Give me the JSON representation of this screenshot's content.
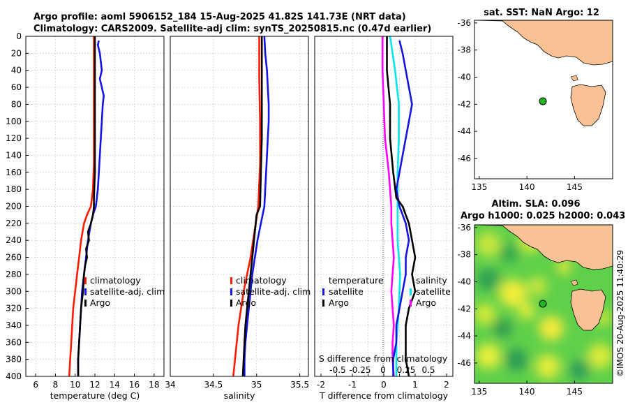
{
  "header": {
    "line1": "Argo profile: aoml 5906152_184 15-Aug-2025 41.82S 141.73E (NRT data)",
    "line2": "Climatology: CARS2009. Satellite-adj clim: synTS_20250815.nc (0.47d earlier)"
  },
  "side_label": "©IMOS 20-Aug-2025 11:40:29",
  "colors": {
    "climatology": "#ff1a00",
    "satellite": "#1414e6",
    "argo": "#000000",
    "t_diff_sat": "#1414e6",
    "s_diff_sat": "#00e5ee",
    "s_diff_argo": "#ff00ff",
    "land": "#f9c295",
    "ocean_sla": "#5fd04a"
  },
  "chart_data": [
    {
      "type": "line",
      "panel": "temperature",
      "xlabel": "temperature (deg C)",
      "ylabel": "",
      "xlim": [
        5,
        19
      ],
      "ylim": [
        400,
        0
      ],
      "xticks": [
        6,
        8,
        10,
        12,
        14,
        16,
        18
      ],
      "yticks": [
        0,
        20,
        40,
        60,
        80,
        100,
        120,
        140,
        160,
        180,
        200,
        220,
        240,
        260,
        280,
        300,
        320,
        340,
        360,
        380,
        400
      ],
      "legend": [
        "climatology",
        "satellite-adj. clim",
        "Argo"
      ],
      "series": [
        {
          "name": "climatology",
          "depth": [
            0,
            50,
            100,
            150,
            180,
            200,
            210,
            220,
            240,
            260,
            280,
            300,
            320,
            340,
            360,
            380,
            400
          ],
          "values": [
            11.9,
            11.9,
            11.9,
            11.9,
            11.8,
            11.6,
            11.2,
            10.9,
            10.6,
            10.4,
            10.2,
            10.0,
            9.8,
            9.7,
            9.6,
            9.5,
            9.4
          ]
        },
        {
          "name": "satellite-adj. clim",
          "depth": [
            5,
            10,
            20,
            40,
            50,
            60,
            70,
            80,
            100,
            120,
            140,
            160,
            180,
            200,
            210,
            220,
            240,
            260,
            280,
            300,
            320,
            340,
            360,
            380,
            400
          ],
          "values": [
            12.4,
            12.3,
            12.5,
            12.7,
            12.5,
            12.7,
            12.9,
            12.8,
            12.7,
            12.6,
            12.5,
            12.4,
            12.3,
            12.1,
            11.8,
            11.6,
            11.3,
            11.1,
            10.9,
            10.7,
            10.6,
            10.5,
            10.4,
            10.3,
            10.3
          ]
        },
        {
          "name": "Argo",
          "depth": [
            0,
            40,
            80,
            120,
            160,
            190,
            200,
            210,
            220,
            230,
            240,
            250,
            260,
            270,
            280,
            300,
            320,
            340,
            360,
            380,
            400
          ],
          "values": [
            12.0,
            12.0,
            12.0,
            12.0,
            12.0,
            11.9,
            11.9,
            11.8,
            11.6,
            11.3,
            11.4,
            11.1,
            11.2,
            11.0,
            10.9,
            10.8,
            10.6,
            10.5,
            10.4,
            10.3,
            10.3
          ]
        }
      ]
    },
    {
      "type": "line",
      "panel": "salinity",
      "xlabel": "salinity",
      "xlim": [
        34,
        35.6
      ],
      "ylim": [
        400,
        0
      ],
      "xticks": [
        34,
        34.5,
        35,
        35.5
      ],
      "legend": [
        "climatology",
        "satellite-adj. clim",
        "Argo"
      ],
      "series": [
        {
          "name": "climatology",
          "depth": [
            0,
            50,
            100,
            150,
            200,
            220,
            240,
            260,
            280,
            300,
            320,
            340,
            360,
            380,
            400
          ],
          "values": [
            35.03,
            35.03,
            35.04,
            35.04,
            35.02,
            34.99,
            34.96,
            34.93,
            34.89,
            34.85,
            34.82,
            34.79,
            34.77,
            34.75,
            34.73
          ]
        },
        {
          "name": "satellite-adj. clim",
          "depth": [
            0,
            20,
            40,
            60,
            80,
            100,
            120,
            140,
            160,
            180,
            200,
            220,
            240,
            260,
            280,
            300,
            320,
            340,
            360,
            380,
            400
          ],
          "values": [
            35.09,
            35.1,
            35.12,
            35.13,
            35.14,
            35.14,
            35.13,
            35.12,
            35.11,
            35.1,
            35.09,
            35.05,
            35.01,
            34.98,
            34.95,
            34.93,
            34.91,
            34.89,
            34.87,
            34.86,
            34.86
          ]
        },
        {
          "name": "Argo",
          "depth": [
            0,
            40,
            80,
            120,
            160,
            200,
            210,
            220,
            240,
            260,
            280,
            300,
            320,
            340,
            360,
            380,
            400
          ],
          "values": [
            35.06,
            35.06,
            35.06,
            35.06,
            35.05,
            35.04,
            35.0,
            34.99,
            34.97,
            34.95,
            34.93,
            34.91,
            34.89,
            34.87,
            34.86,
            34.85,
            34.84
          ]
        }
      ]
    },
    {
      "type": "line",
      "panel": "difference",
      "xlabel": "T difference from climatology",
      "xlim": [
        -2.2,
        2.2
      ],
      "ylim": [
        400,
        0
      ],
      "xticks": [
        -2,
        -1.5,
        -1,
        -0.5,
        0,
        0.5,
        1,
        1.5,
        2
      ],
      "xtick_labels": [
        "-2",
        "-1.5",
        "-1",
        "-0.5",
        "0",
        "0.5",
        "1",
        "1.5",
        "2"
      ],
      "second_xlabel": "S difference from climatology",
      "second_xticks": [
        "-0.5",
        "-0.25",
        "0",
        "0.25",
        "0.5"
      ],
      "legend_left_title": "temperature",
      "legend_left": [
        "satellite",
        "Argo"
      ],
      "legend_right_title": "salinity",
      "legend_right": [
        "satellite",
        "Argo"
      ],
      "series": [
        {
          "name": "T satellite",
          "depth": [
            5,
            20,
            40,
            60,
            80,
            100,
            120,
            140,
            160,
            180,
            200,
            220,
            240,
            260,
            280,
            300,
            320,
            340,
            360,
            380,
            400
          ],
          "values": [
            0.5,
            0.6,
            0.7,
            0.8,
            0.9,
            0.8,
            0.7,
            0.6,
            0.5,
            0.4,
            0.5,
            0.7,
            0.8,
            0.7,
            0.7,
            0.6,
            0.5,
            0.4,
            0.4,
            0.3,
            0.3
          ]
        },
        {
          "name": "T Argo",
          "depth": [
            0,
            40,
            80,
            120,
            160,
            190,
            200,
            210,
            220,
            240,
            260,
            280,
            300,
            320,
            340,
            360,
            380,
            400
          ],
          "values": [
            0.1,
            0.1,
            0.2,
            0.2,
            0.3,
            0.4,
            0.6,
            0.7,
            0.8,
            0.9,
            1.0,
            0.9,
            1.0,
            0.8,
            0.7,
            0.7,
            0.7,
            0.8
          ]
        },
        {
          "name": "S satellite",
          "depth": [
            0,
            40,
            80,
            120,
            160,
            200,
            240,
            280,
            320,
            360,
            400
          ],
          "values": [
            0.05,
            0.09,
            0.12,
            0.12,
            0.11,
            0.11,
            0.11,
            0.13,
            0.12,
            0.1,
            0.1
          ]
        },
        {
          "name": "S Argo",
          "depth": [
            0,
            40,
            80,
            120,
            160,
            200,
            220,
            240,
            260,
            280,
            300,
            320,
            340,
            360,
            380,
            400
          ],
          "values": [
            -0.01,
            -0.01,
            0.0,
            0.01,
            0.04,
            0.06,
            0.06,
            0.07,
            0.08,
            0.07,
            0.06,
            0.07,
            0.08,
            0.07,
            0.07,
            0.08
          ]
        }
      ]
    },
    {
      "type": "map",
      "title": "sat. SST: NaN Argo: 12",
      "xticks": [
        135,
        140,
        145
      ],
      "yticks": [
        -36,
        -38,
        -40,
        -42,
        -44,
        -46
      ],
      "xlim": [
        134.5,
        149
      ],
      "ylim": [
        -47.5,
        -35.8
      ],
      "argo_position": [
        141.73,
        -41.82
      ]
    },
    {
      "type": "heatmap",
      "title_line1": "Altim. SLA: 0.096",
      "title_line2": "Argo h1000: 0.025 h2000: 0.043",
      "xticks": [
        135,
        140,
        145
      ],
      "yticks": [
        -36,
        -38,
        -40,
        -42,
        -44,
        -46
      ],
      "xlim": [
        134.5,
        149
      ],
      "ylim": [
        -47.5,
        -35.8
      ],
      "argo_position": [
        141.73,
        -41.82
      ]
    }
  ]
}
